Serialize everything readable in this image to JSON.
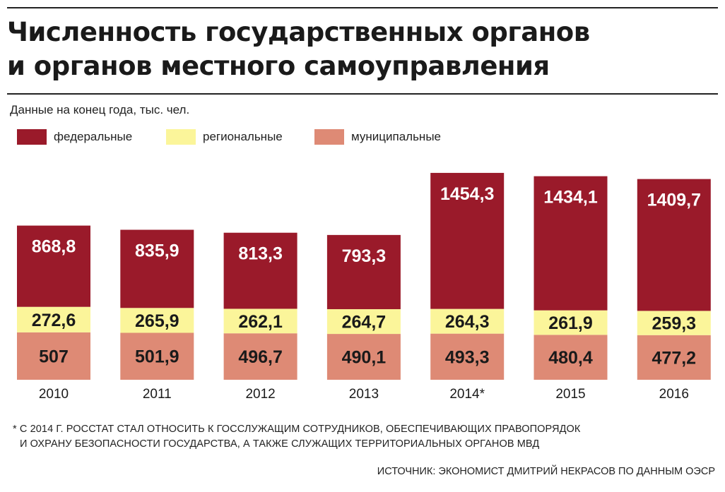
{
  "title_line1": "Численность государственных органов",
  "title_line2": "и органов местного самоуправления",
  "subtitle": "Данные на конец года, тыс. чел.",
  "colors": {
    "federal": "#9a1a2a",
    "regional": "#fbf59a",
    "municipal": "#de8a75"
  },
  "legend": [
    {
      "label": "федеральные",
      "color": "#9a1a2a"
    },
    {
      "label": "региональные",
      "color": "#fbf59a"
    },
    {
      "label": "муниципальные",
      "color": "#de8a75"
    }
  ],
  "chart_data": {
    "type": "bar",
    "stacked": true,
    "categories": [
      "2010",
      "2011",
      "2012",
      "2013",
      "2014*",
      "2015",
      "2016"
    ],
    "series": [
      {
        "name": "муниципальные",
        "color": "#de8a75",
        "values": [
          507,
          501.9,
          496.7,
          490.1,
          493.3,
          480.4,
          477.2
        ],
        "labels": [
          "507",
          "501,9",
          "496,7",
          "490,1",
          "493,3",
          "480,4",
          "477,2"
        ]
      },
      {
        "name": "региональные",
        "color": "#fbf59a",
        "values": [
          272.6,
          265.9,
          262.1,
          264.7,
          264.3,
          261.9,
          259.3
        ],
        "labels": [
          "272,6",
          "265,9",
          "262,1",
          "264,7",
          "264,3",
          "261,9",
          "259,3"
        ]
      },
      {
        "name": "федеральные",
        "color": "#9a1a2a",
        "values": [
          868.8,
          835.9,
          813.3,
          793.3,
          1454.3,
          1434.1,
          1409.7
        ],
        "labels": [
          "868,8",
          "835,9",
          "813,3",
          "793,3",
          "1454,3",
          "1434,1",
          "1409,7"
        ]
      }
    ],
    "ylim": [
      0,
      2300
    ],
    "legend_position": "top-left",
    "grid": false
  },
  "footnote_line1": "* С 2014 Г. РОССТАТ СТАЛ ОТНОСИТЬ К ГОССЛУЖАЩИМ СОТРУДНИКОВ, ОБЕСПЕЧИВАЮЩИХ ПРАВОПОРЯДОК",
  "footnote_line2": "И ОХРАНУ БЕЗОПАСНОСТИ ГОСУДАРСТВА, А ТАКЖЕ СЛУЖАЩИХ ТЕРРИТОРИАЛЬНЫХ ОРГАНОВ МВД",
  "source": "ИСТОЧНИК: ЭКОНОМИСТ ДМИТРИЙ НЕКРАСОВ ПО ДАННЫМ ОЭСР"
}
